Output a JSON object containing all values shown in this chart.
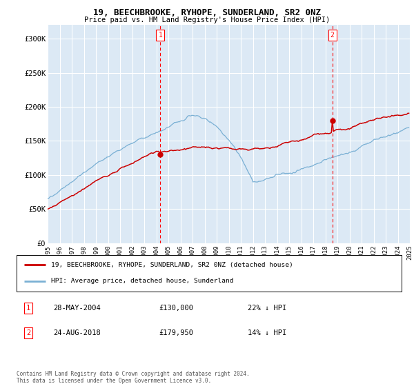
{
  "title": "19, BEECHBROOKE, RYHOPE, SUNDERLAND, SR2 0NZ",
  "subtitle": "Price paid vs. HM Land Registry's House Price Index (HPI)",
  "background_color": "#ffffff",
  "plot_background": "#dce9f5",
  "grid_color": "#ffffff",
  "hpi_color": "#7ab0d4",
  "price_color": "#cc0000",
  "marker1_price": 130000,
  "marker1_date_str": "28-MAY-2004",
  "marker1_pct": "22% ↓ HPI",
  "marker2_price": 179950,
  "marker2_date_str": "24-AUG-2018",
  "marker2_pct": "14% ↓ HPI",
  "legend_line1": "19, BEECHBROOKE, RYHOPE, SUNDERLAND, SR2 0NZ (detached house)",
  "legend_line2": "HPI: Average price, detached house, Sunderland",
  "footer": "Contains HM Land Registry data © Crown copyright and database right 2024.\nThis data is licensed under the Open Government Licence v3.0.",
  "ylim": [
    0,
    320000
  ],
  "yticks": [
    0,
    50000,
    100000,
    150000,
    200000,
    250000,
    300000
  ],
  "ytick_labels": [
    "£0",
    "£50K",
    "£100K",
    "£150K",
    "£200K",
    "£250K",
    "£300K"
  ],
  "xtick_years": [
    "1995",
    "1996",
    "1997",
    "1998",
    "1999",
    "2000",
    "2001",
    "2002",
    "2003",
    "2004",
    "2005",
    "2006",
    "2007",
    "2008",
    "2009",
    "2010",
    "2011",
    "2012",
    "2013",
    "2014",
    "2015",
    "2016",
    "2017",
    "2018",
    "2019",
    "2020",
    "2021",
    "2022",
    "2023",
    "2024",
    "2025"
  ]
}
